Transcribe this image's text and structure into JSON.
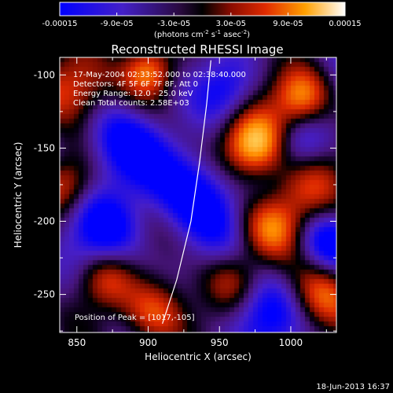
{
  "colorbar": {
    "tick_labels": [
      "-0.00015",
      "-9.0e-05",
      "-3.0e-05",
      "3.0e-05",
      "9.0e-05",
      "0.00015"
    ],
    "tick_values": [
      -0.00015,
      -9e-05,
      -3e-05,
      3e-05,
      9e-05,
      0.00015
    ],
    "range": [
      -0.00015,
      0.00015
    ],
    "units_prefix": "(photons cm",
    "units_exp1": "-2",
    "units_mid": " s",
    "units_exp2": "-1",
    "units_mid2": " asec",
    "units_exp3": "-2",
    "units_suffix": ")",
    "colors": [
      "#0000ff",
      "#5a1aa0",
      "#000000",
      "#c01800",
      "#ff8c00",
      "#ffffff"
    ]
  },
  "chart_data": {
    "type": "heatmap",
    "title": "Reconstructed RHESSI Image",
    "xlabel": "Heliocentric X (arcsec)",
    "ylabel": "Heliocentric Y (arcsec)",
    "xlim": [
      838,
      1032
    ],
    "ylim": [
      -276,
      -88
    ],
    "x_ticks": [
      850,
      900,
      950,
      1000
    ],
    "y_ticks": [
      -100,
      -150,
      -200,
      -250
    ],
    "info_lines": [
      "17-May-2004 02:33:52.000 to 02:38:40.000",
      "Detectors: 4F 5F 6F 7F 8F, Att 0",
      "Energy Range: 12.0 - 25.0 keV",
      "Clean     Total counts: 2.58E+03"
    ],
    "peak_label": "Position of Peak = [1017,-105]",
    "peak_position": [
      1017,
      -105
    ],
    "limb_line": [
      [
        944,
        -90
      ],
      [
        941,
        -120
      ],
      [
        936,
        -160
      ],
      [
        930,
        -200
      ],
      [
        920,
        -240
      ],
      [
        910,
        -270
      ]
    ],
    "sources": [
      {
        "x": 975,
        "y": -148,
        "amp": 1.6,
        "w": 16
      },
      {
        "x": 1008,
        "y": -115,
        "amp": 1.1,
        "w": 14
      },
      {
        "x": 850,
        "y": -108,
        "amp": 1.1,
        "w": 18
      },
      {
        "x": 900,
        "y": -97,
        "amp": 0.9,
        "w": 12
      },
      {
        "x": 1008,
        "y": -180,
        "amp": 0.8,
        "w": 18
      },
      {
        "x": 985,
        "y": -205,
        "amp": 0.7,
        "w": 14
      },
      {
        "x": 905,
        "y": -262,
        "amp": 1.0,
        "w": 16
      },
      {
        "x": 870,
        "y": -240,
        "amp": 0.7,
        "w": 14
      },
      {
        "x": 840,
        "y": -175,
        "amp": 0.8,
        "w": 14
      },
      {
        "x": 960,
        "y": -240,
        "amp": 0.6,
        "w": 14
      },
      {
        "x": 1020,
        "y": -250,
        "amp": 0.8,
        "w": 16
      },
      {
        "x": 880,
        "y": -150,
        "amp": -0.8,
        "w": 20
      },
      {
        "x": 935,
        "y": -180,
        "amp": -0.9,
        "w": 22
      },
      {
        "x": 1005,
        "y": -148,
        "amp": -0.6,
        "w": 14
      },
      {
        "x": 955,
        "y": -110,
        "amp": -0.5,
        "w": 14
      },
      {
        "x": 870,
        "y": -205,
        "amp": -0.7,
        "w": 18
      },
      {
        "x": 980,
        "y": -265,
        "amp": -0.6,
        "w": 18
      },
      {
        "x": 1025,
        "y": -215,
        "amp": -0.6,
        "w": 14
      }
    ]
  },
  "footer": {
    "date": "18-Jun-2013 16:37"
  }
}
